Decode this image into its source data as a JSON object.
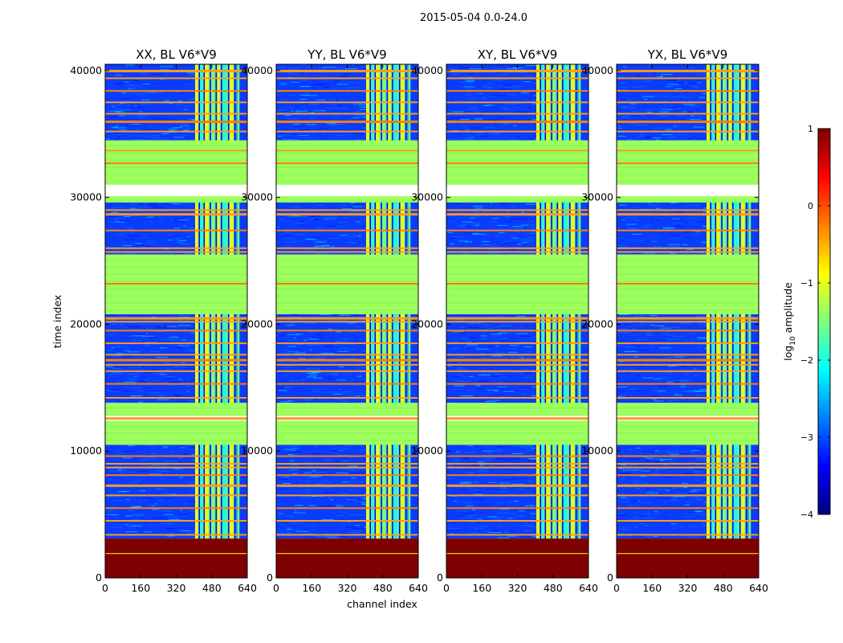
{
  "suptitle": "2015-05-04 0.0-24.0",
  "colors": {
    "jet": [
      "#00007f",
      "#0000ff",
      "#007fff",
      "#00ffff",
      "#7fff7f",
      "#ffff00",
      "#ff7f00",
      "#ff0000",
      "#7f0000"
    ]
  },
  "chart_data": {
    "type": "heatmap",
    "xlabel": "channel index",
    "ylabel": "time index",
    "xlim": [
      0,
      640
    ],
    "ylim": [
      0,
      40500
    ],
    "x_ticks": [
      "0",
      "160",
      "320",
      "480",
      "640"
    ],
    "x_tick_values": [
      0,
      160,
      320,
      480,
      640
    ],
    "y_ticks": [
      "0",
      "10000",
      "20000",
      "30000",
      "40000"
    ],
    "y_tick_values": [
      0,
      10000,
      20000,
      30000,
      40000
    ],
    "panels": [
      {
        "title": "XX, BL V6*V9",
        "rfi_band_channels": [
          405,
          605
        ]
      },
      {
        "title": "YY, BL V6*V9",
        "rfi_band_channels": [
          405,
          605
        ]
      },
      {
        "title": "XY, BL V6*V9",
        "rfi_band_channels": [
          405,
          605
        ]
      },
      {
        "title": "YX, BL V6*V9",
        "rfi_band_channels": [
          405,
          605
        ]
      }
    ],
    "colorbar": {
      "label_main": "log",
      "label_sub": "10",
      "label_rest": " amplitude",
      "range": [
        -4,
        1
      ],
      "ticks": [
        "1",
        "0",
        "−1",
        "−2",
        "−3",
        "−4"
      ],
      "tick_values": [
        1,
        0,
        -1,
        -2,
        -3,
        -4
      ]
    },
    "structure": {
      "saturated_time_range": [
        0,
        3100
      ],
      "flagged_time_ranges": [
        [
          10500,
          12400
        ],
        [
          12800,
          13800
        ],
        [
          20800,
          25500
        ],
        [
          29600,
          30100
        ],
        [
          31000,
          34500
        ]
      ],
      "noisy_time_ranges": [
        [
          3100,
          10500
        ],
        [
          13800,
          20800
        ],
        [
          25500,
          29600
        ],
        [
          34500,
          40500
        ]
      ],
      "narrow_flag_rows": [
        1950,
        3400,
        4500,
        5500,
        6500,
        7300,
        8100,
        8700,
        9000,
        9600,
        12600,
        14200,
        15300,
        16300,
        16800,
        17200,
        17600,
        18500,
        19500,
        20200,
        20500,
        23200,
        25700,
        26000,
        27400,
        28700,
        29000,
        32700,
        33700,
        35200,
        36000,
        36600,
        37500,
        38400,
        39400,
        40000
      ]
    }
  }
}
